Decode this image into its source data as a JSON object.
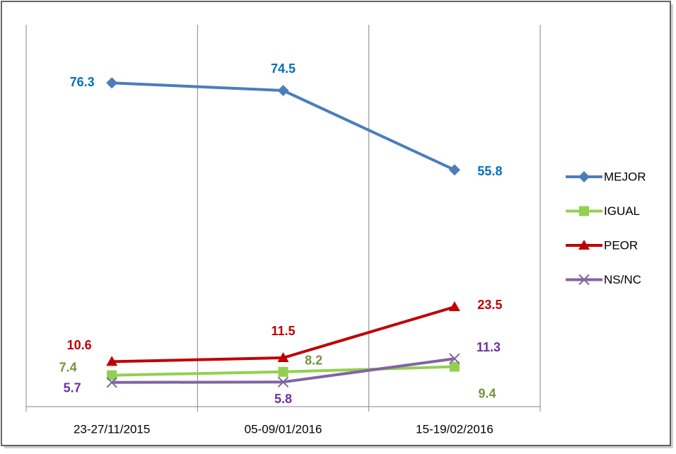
{
  "chart_data": {
    "type": "line",
    "categories": [
      "23-27/11/2015",
      "05-09/01/2016",
      "15-19/02/2016"
    ],
    "ylim": [
      0,
      90
    ],
    "series": [
      {
        "name": "MEJOR",
        "color": "#4a7ebb",
        "label_color": "#0070c0",
        "marker": "diamond",
        "values": [
          76.3,
          74.5,
          55.8
        ]
      },
      {
        "name": "IGUAL",
        "color": "#92d050",
        "label_color": "#77933c",
        "marker": "square",
        "values": [
          7.4,
          8.2,
          9.4
        ]
      },
      {
        "name": "PEOR",
        "color": "#c00000",
        "label_color": "#c00000",
        "marker": "triangle",
        "values": [
          10.6,
          11.5,
          23.5
        ]
      },
      {
        "name": "NS/NC",
        "color": "#8064a2",
        "label_color": "#7030a0",
        "marker": "x",
        "values": [
          5.7,
          5.8,
          11.3
        ]
      }
    ],
    "legend": "right"
  }
}
